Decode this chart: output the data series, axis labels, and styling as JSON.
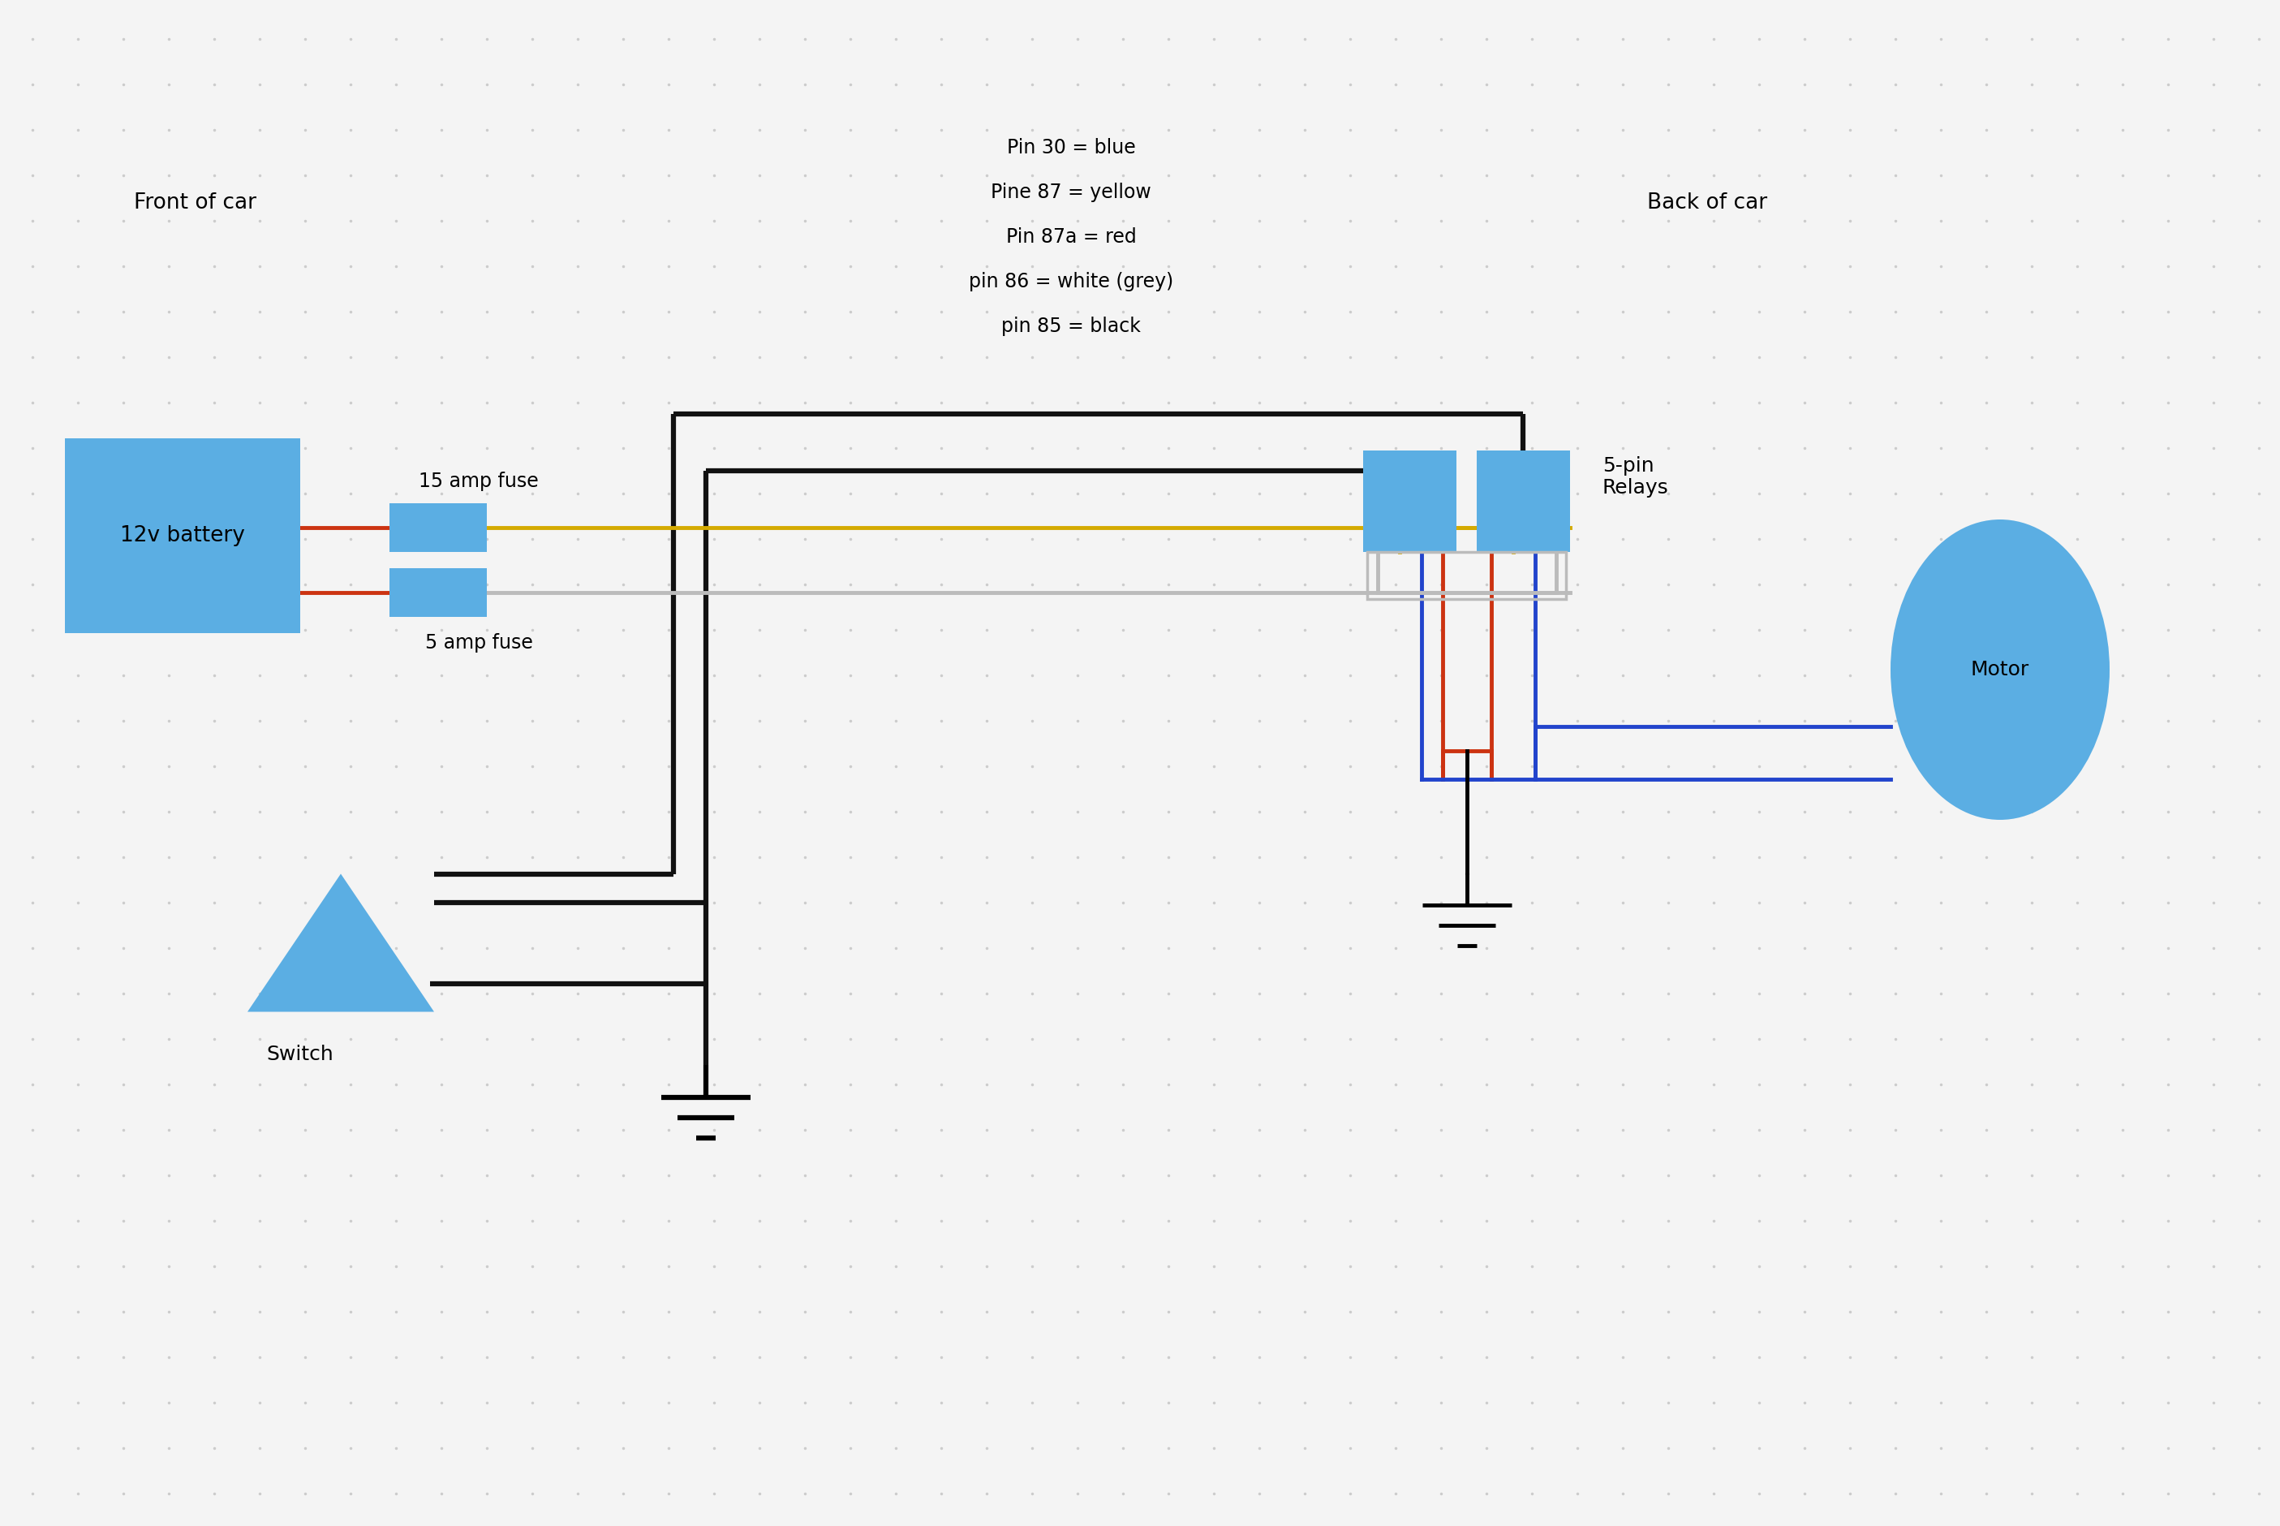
{
  "bg_color": "#f4f4f4",
  "dot_color": "#cccccc",
  "title_lines": [
    "Pin 30 = blue",
    "Pine 87 = yellow",
    "Pin 87a = red",
    "pin 86 = white (grey)",
    "pin 85 = black"
  ],
  "label_front": "Front of car",
  "label_back": "Back of car",
  "label_switch": "Switch",
  "label_battery": "12v battery",
  "label_15amp": "15 amp fuse",
  "label_5amp": "5 amp fuse",
  "label_relay": "5-pin\nRelays",
  "label_motor": "Motor",
  "blue_color": "#5baee3",
  "wire_black": "#111111",
  "wire_red": "#cc3311",
  "wire_yellow": "#d4aa00",
  "wire_gray": "#bbbbbb",
  "wire_blue": "#2244cc",
  "lw_thick": 4.5,
  "lw_med": 3.5,
  "lw_thin": 2.5
}
